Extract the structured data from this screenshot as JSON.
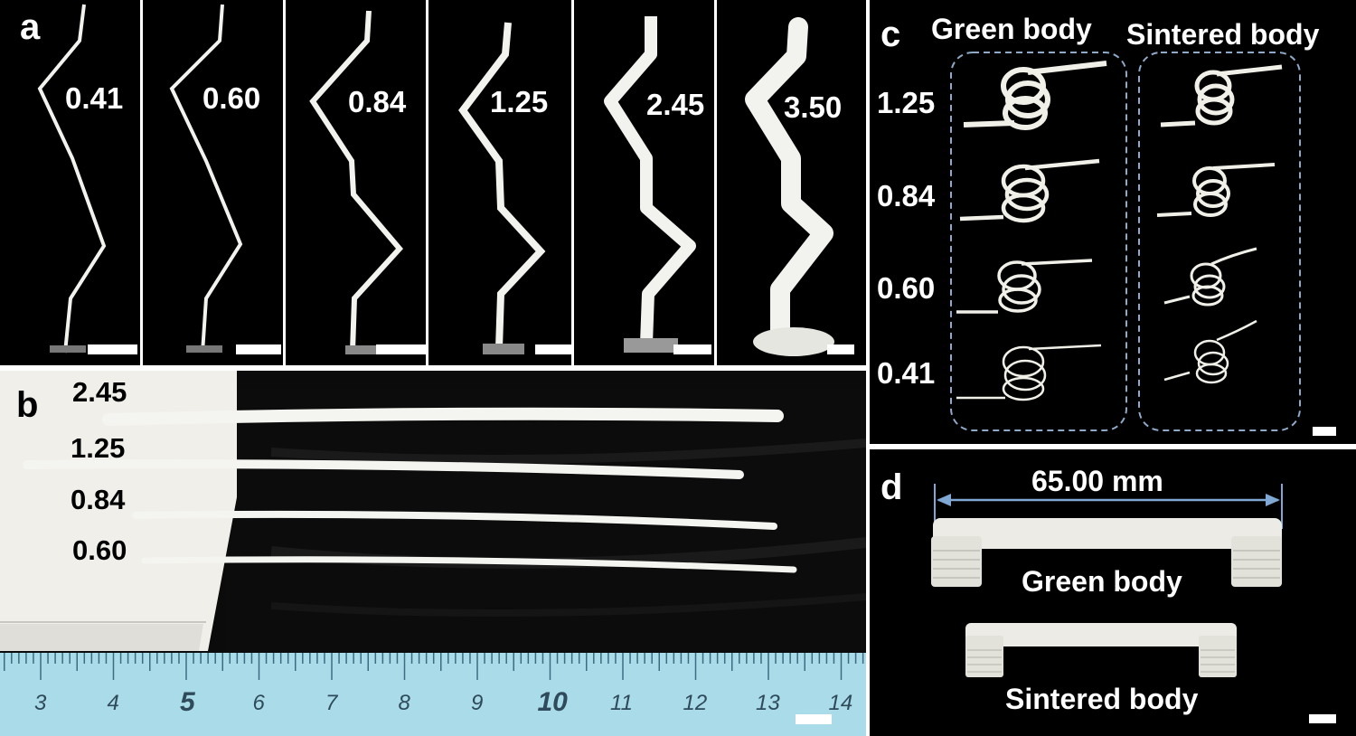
{
  "panel_a": {
    "label": "a",
    "values": [
      "0.41",
      "0.60",
      "0.84",
      "1.25",
      "2.45",
      "3.50"
    ]
  },
  "panel_b": {
    "label": "b",
    "values": [
      "2.45",
      "1.25",
      "0.84",
      "0.60"
    ],
    "ruler_ticks": [
      "3",
      "4",
      "5",
      "6",
      "7",
      "8",
      "9",
      "10",
      "11",
      "12",
      "13",
      "14"
    ]
  },
  "panel_c": {
    "label": "c",
    "green_title": "Green body",
    "sintered_title": "Sintered body",
    "values": [
      "1.25",
      "0.84",
      "0.60",
      "0.41"
    ]
  },
  "panel_d": {
    "label": "d",
    "dimension": "65.00 mm",
    "green_label": "Green body",
    "sintered_label": "Sintered body"
  }
}
